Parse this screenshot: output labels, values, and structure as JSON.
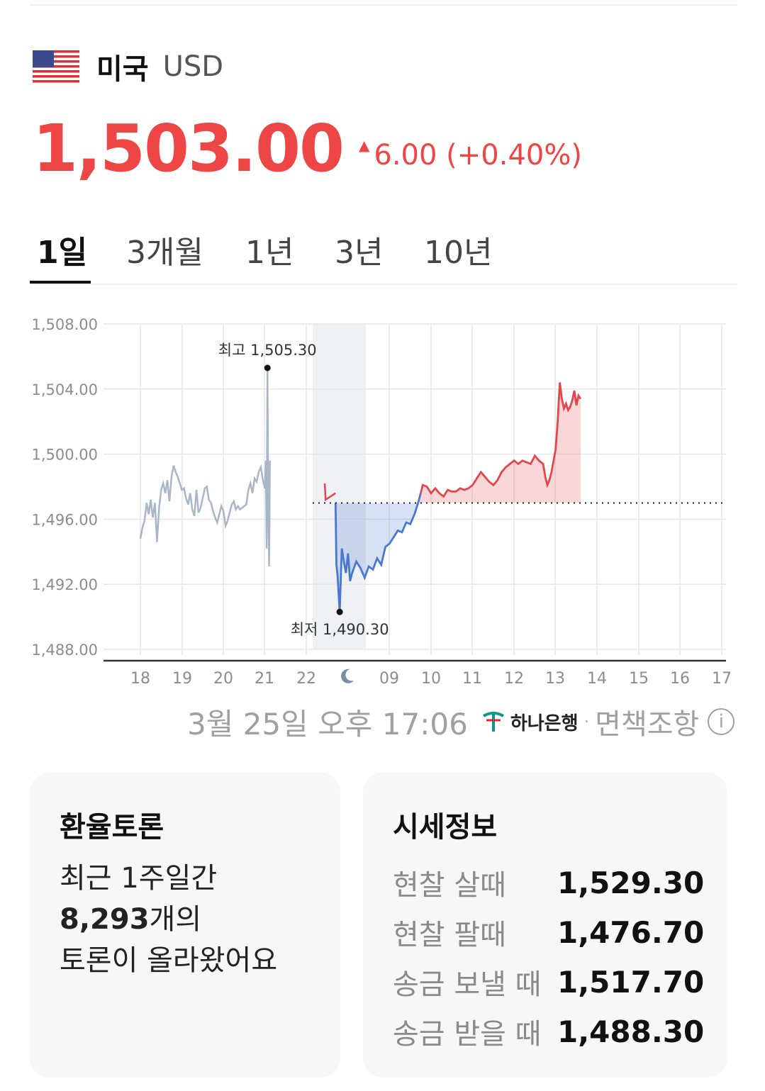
{
  "header": {
    "country": "미국",
    "currency": "USD",
    "flag_icon": "us-flag-icon"
  },
  "quote": {
    "price": "1,503.00",
    "change": "6.00 (+0.40%)",
    "direction": "up",
    "up_color": "#ee4545"
  },
  "tabs": [
    {
      "label": "1일",
      "active": true
    },
    {
      "label": "3개월",
      "active": false
    },
    {
      "label": "1년",
      "active": false
    },
    {
      "label": "3년",
      "active": false
    },
    {
      "label": "10년",
      "active": false
    }
  ],
  "chart_data": {
    "type": "line",
    "y_ticks": [
      "1,508.00",
      "1,504.00",
      "1,500.00",
      "1,496.00",
      "1,492.00",
      "1,488.00"
    ],
    "ylim": [
      1488,
      1508
    ],
    "x_ticks": [
      "18",
      "19",
      "20",
      "21",
      "22",
      "moon-icon",
      "09",
      "10",
      "11",
      "12",
      "13",
      "14",
      "15",
      "16",
      "17"
    ],
    "reference_value": 1497.0,
    "high_label": "최고 1,505.30",
    "high_value": 1505.3,
    "low_label": "최저 1,490.30",
    "low_value": 1490.3,
    "colors": {
      "overnight": "#a9b6c8",
      "below": "#4a78cf",
      "above": "#e3474c",
      "closed_band": "#eef0f4"
    },
    "series": [
      {
        "segment": "overnight",
        "points": [
          [
            0,
            1494.8
          ],
          [
            0.05,
            1495.5
          ],
          [
            0.1,
            1495.9
          ],
          [
            0.15,
            1497.0
          ],
          [
            0.2,
            1496.3
          ],
          [
            0.25,
            1497.2
          ],
          [
            0.3,
            1496.1
          ],
          [
            0.35,
            1497.0
          ],
          [
            0.4,
            1494.6
          ],
          [
            0.45,
            1496.7
          ],
          [
            0.5,
            1497.8
          ],
          [
            0.55,
            1498.2
          ],
          [
            0.6,
            1497.6
          ],
          [
            0.65,
            1498.4
          ],
          [
            0.7,
            1497.1
          ],
          [
            0.75,
            1498.6
          ],
          [
            0.8,
            1499.3
          ],
          [
            0.85,
            1498.9
          ],
          [
            0.9,
            1498.6
          ],
          [
            0.95,
            1498.2
          ],
          [
            1.0,
            1497.8
          ],
          [
            1.05,
            1497.9
          ],
          [
            1.1,
            1497.3
          ],
          [
            1.15,
            1496.9
          ],
          [
            1.2,
            1497.6
          ],
          [
            1.25,
            1496.6
          ],
          [
            1.3,
            1496.2
          ],
          [
            1.35,
            1497.8
          ],
          [
            1.4,
            1496.4
          ],
          [
            1.45,
            1496.7
          ],
          [
            1.5,
            1497.3
          ],
          [
            1.55,
            1497.9
          ],
          [
            1.6,
            1498.0
          ],
          [
            1.65,
            1497.2
          ],
          [
            1.7,
            1497.0
          ],
          [
            1.75,
            1496.5
          ],
          [
            1.8,
            1496.1
          ],
          [
            1.85,
            1495.8
          ],
          [
            1.9,
            1496.3
          ],
          [
            1.95,
            1496.8
          ],
          [
            2.0,
            1496.5
          ],
          [
            2.05,
            1495.6
          ],
          [
            2.1,
            1495.9
          ],
          [
            2.15,
            1496.4
          ],
          [
            2.2,
            1496.9
          ],
          [
            2.25,
            1497.1
          ],
          [
            2.3,
            1496.6
          ],
          [
            2.35,
            1496.8
          ],
          [
            2.4,
            1496.6
          ],
          [
            2.45,
            1496.7
          ],
          [
            2.5,
            1496.8
          ],
          [
            2.55,
            1496.9
          ],
          [
            2.6,
            1497.8
          ],
          [
            2.65,
            1498.2
          ],
          [
            2.7,
            1497.6
          ],
          [
            2.75,
            1498.5
          ],
          [
            2.8,
            1498.3
          ],
          [
            2.85,
            1498.9
          ],
          [
            2.9,
            1499.2
          ],
          [
            2.95,
            1498.4
          ],
          [
            3.0,
            1497.9
          ],
          [
            3.02,
            1499.6
          ],
          [
            3.04,
            1494.2
          ],
          [
            3.06,
            1505.3
          ],
          [
            3.08,
            1496.8
          ],
          [
            3.1,
            1493.1
          ],
          [
            3.12,
            1499.6
          ]
        ]
      },
      {
        "segment": "open",
        "points": [
          [
            4.44,
            1498.2
          ],
          [
            4.46,
            1497.2
          ],
          [
            4.7,
            1497.6
          ],
          [
            4.72,
            1493.2
          ],
          [
            4.75,
            1492.5
          ],
          [
            4.8,
            1490.3
          ],
          [
            4.85,
            1494.2
          ],
          [
            4.9,
            1493.4
          ],
          [
            4.95,
            1492.7
          ],
          [
            5.0,
            1493.9
          ],
          [
            5.05,
            1492.2
          ],
          [
            5.1,
            1492.7
          ],
          [
            5.2,
            1493.4
          ],
          [
            5.3,
            1493.0
          ],
          [
            5.4,
            1492.4
          ],
          [
            5.5,
            1493.1
          ],
          [
            5.6,
            1492.9
          ],
          [
            5.7,
            1493.6
          ],
          [
            5.8,
            1493.2
          ],
          [
            5.9,
            1494.3
          ],
          [
            6.0,
            1494.5
          ],
          [
            6.1,
            1494.9
          ],
          [
            6.2,
            1495.3
          ],
          [
            6.3,
            1495.2
          ],
          [
            6.4,
            1495.8
          ],
          [
            6.5,
            1495.7
          ],
          [
            6.6,
            1496.3
          ],
          [
            6.7,
            1497.1
          ],
          [
            6.75,
            1497.6
          ],
          [
            6.8,
            1498.1
          ],
          [
            6.9,
            1498.0
          ],
          [
            7.0,
            1497.6
          ],
          [
            7.1,
            1497.9
          ],
          [
            7.2,
            1497.6
          ],
          [
            7.3,
            1497.4
          ],
          [
            7.4,
            1497.8
          ],
          [
            7.5,
            1497.7
          ],
          [
            7.6,
            1497.7
          ],
          [
            7.7,
            1497.9
          ],
          [
            7.8,
            1497.8
          ],
          [
            7.9,
            1497.9
          ],
          [
            8.0,
            1498.1
          ],
          [
            8.1,
            1498.5
          ],
          [
            8.2,
            1498.9
          ],
          [
            8.3,
            1498.6
          ],
          [
            8.4,
            1498.3
          ],
          [
            8.5,
            1498.1
          ],
          [
            8.6,
            1498.4
          ],
          [
            8.7,
            1498.9
          ],
          [
            8.8,
            1499.2
          ],
          [
            8.9,
            1499.4
          ],
          [
            9.0,
            1499.6
          ],
          [
            9.1,
            1499.4
          ],
          [
            9.2,
            1499.6
          ],
          [
            9.3,
            1499.5
          ],
          [
            9.4,
            1499.4
          ],
          [
            9.5,
            1499.9
          ],
          [
            9.6,
            1499.6
          ],
          [
            9.7,
            1499.4
          ],
          [
            9.75,
            1498.6
          ],
          [
            9.8,
            1498.1
          ],
          [
            9.85,
            1498.4
          ],
          [
            9.9,
            1498.9
          ],
          [
            9.95,
            1499.6
          ],
          [
            10.0,
            1500.3
          ],
          [
            10.05,
            1502.0
          ],
          [
            10.1,
            1504.4
          ],
          [
            10.15,
            1503.4
          ],
          [
            10.2,
            1502.8
          ],
          [
            10.25,
            1503.1
          ],
          [
            10.3,
            1502.7
          ],
          [
            10.35,
            1502.9
          ],
          [
            10.4,
            1503.3
          ],
          [
            10.45,
            1503.9
          ],
          [
            10.5,
            1503.0
          ],
          [
            10.55,
            1503.6
          ],
          [
            10.6,
            1503.4
          ]
        ]
      }
    ]
  },
  "footer": {
    "timestamp": "3월 25일 오후 17:06",
    "bank": "하나은행",
    "separator": "·",
    "disclaimer": "면책조항",
    "info_icon": "ⓘ"
  },
  "discussion": {
    "title": "환율토론",
    "line1": "최근 1주일간",
    "count": "8,293",
    "line2_suffix": "개의",
    "line3": "토론이 올라왔어요"
  },
  "market_info": {
    "title": "시세정보",
    "rows": [
      {
        "label": "현찰 살때",
        "value": "1,529.30"
      },
      {
        "label": "현찰 팔때",
        "value": "1,476.70"
      },
      {
        "label": "송금 보낼 때",
        "value": "1,517.70"
      },
      {
        "label": "송금 받을 때",
        "value": "1,488.30"
      }
    ]
  }
}
